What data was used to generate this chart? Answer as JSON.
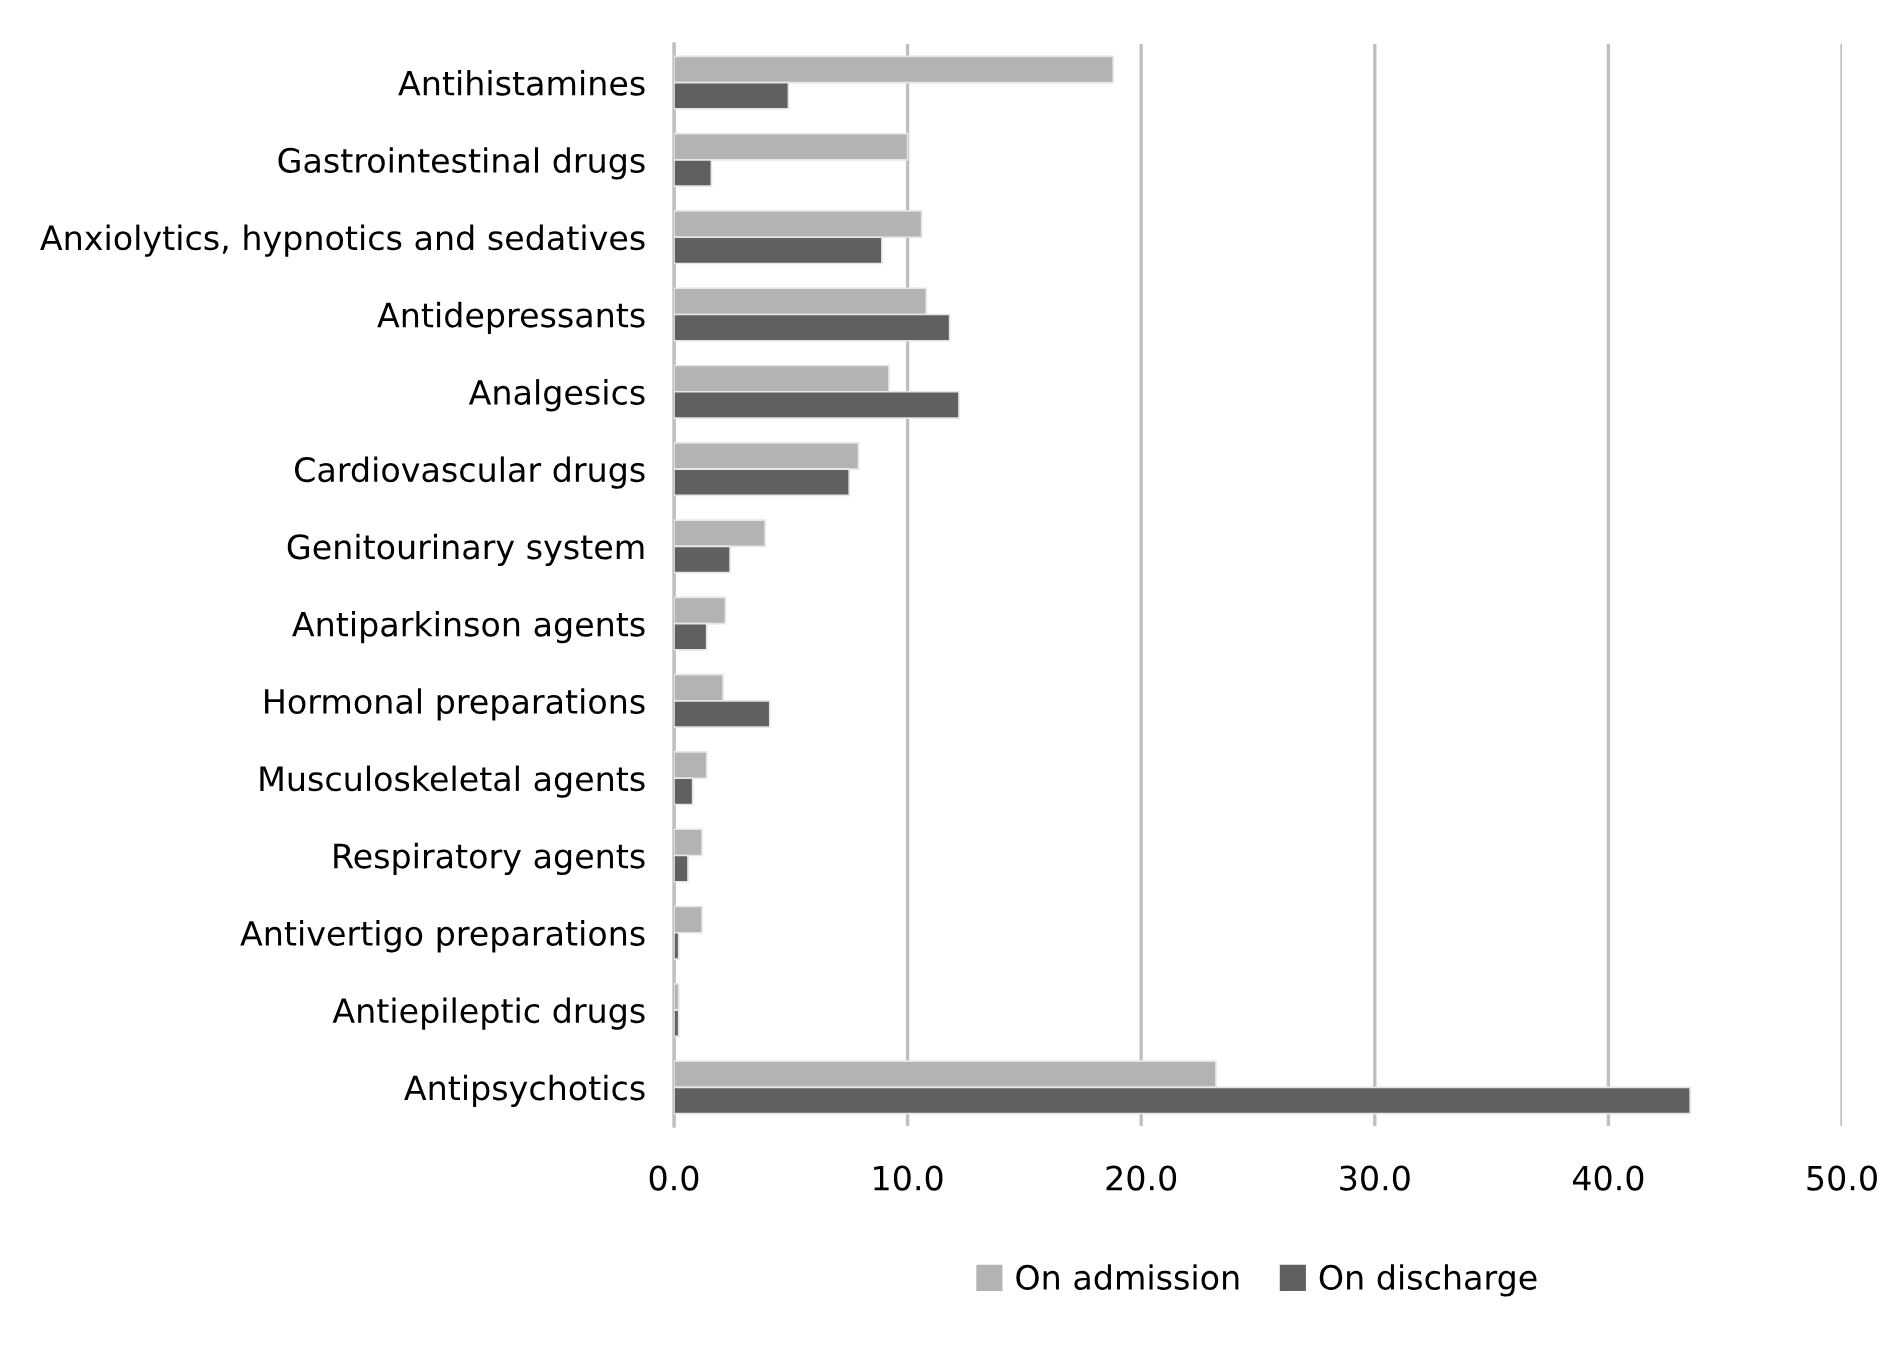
{
  "chart_data": {
    "type": "bar",
    "orientation": "horizontal",
    "categories": [
      "Antihistamines",
      "Gastrointestinal drugs",
      "Anxiolytics, hypnotics and sedatives",
      "Antidepressants",
      "Analgesics",
      "Cardiovascular drugs",
      "Genitourinary system",
      "Antiparkinson agents",
      "Hormonal preparations",
      "Musculoskeletal agents",
      "Respiratory agents",
      "Antivertigo preparations",
      "Antiepileptic drugs",
      "Antipsychotics"
    ],
    "series": [
      {
        "name": "On admission",
        "color": "#b3b3b3",
        "values": [
          18.8,
          10.0,
          10.6,
          10.8,
          9.2,
          7.9,
          3.9,
          2.2,
          2.1,
          1.4,
          1.2,
          1.2,
          0.2,
          23.2
        ]
      },
      {
        "name": "On discharge",
        "color": "#606060",
        "values": [
          4.9,
          1.6,
          8.9,
          11.8,
          12.2,
          7.5,
          2.4,
          1.4,
          4.1,
          0.8,
          0.6,
          0.2,
          0.2,
          43.5
        ]
      }
    ],
    "xlim": [
      0,
      50
    ],
    "xticks": [
      {
        "value": 0,
        "label": "0.0"
      },
      {
        "value": 10,
        "label": "10.0"
      },
      {
        "value": 20,
        "label": "20.0"
      },
      {
        "value": 30,
        "label": "30.0"
      },
      {
        "value": 40,
        "label": "40.0"
      },
      {
        "value": 50,
        "label": "50.0"
      }
    ],
    "grid": "x",
    "legend": "bottom"
  }
}
